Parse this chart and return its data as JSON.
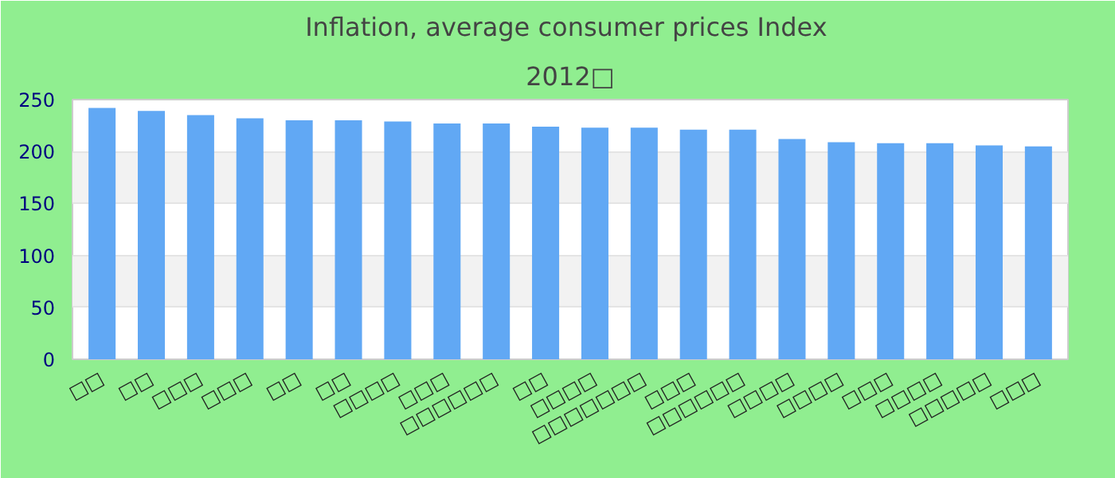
{
  "chart_data": {
    "type": "bar",
    "title": "Inflation, average consumer prices  Index",
    "subtitle": "2012□",
    "categories": [
      "□□",
      "□□",
      "□□□",
      "□□□",
      "□□",
      "□□",
      "□□□□",
      "□□□",
      "□□□□□□",
      "□□",
      "□□□□",
      "□□□□□□□",
      "□□□",
      "□□□□□□",
      "□□□□",
      "□□□□",
      "□□□",
      "□□□□",
      "□□□□□",
      "□□□"
    ],
    "values": [
      242,
      239,
      235,
      232,
      230,
      230,
      229,
      227,
      227,
      224,
      223,
      223,
      221,
      221,
      212,
      209,
      208,
      208,
      206,
      205
    ],
    "color": "#61a8f4",
    "ylim": [
      0,
      250
    ],
    "yticks": [
      0,
      50,
      100,
      150,
      200,
      250
    ],
    "grid": "y"
  }
}
